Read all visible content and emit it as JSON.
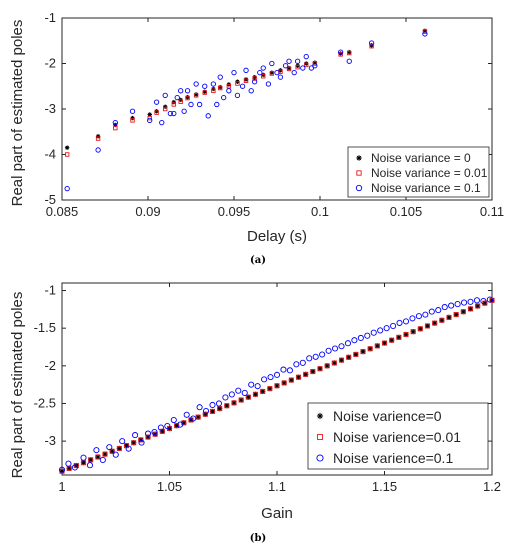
{
  "chart_data": [
    {
      "type": "scatter",
      "caption": "(a)",
      "xlabel": "Delay (s)",
      "ylabel": "Real part of estimated poles",
      "xlim": [
        0.085,
        0.11
      ],
      "ylim": [
        -5,
        -1
      ],
      "x_ticks": [
        "0.085",
        "0.09",
        "0.095",
        "0.1",
        "0.105",
        "0.11"
      ],
      "y_ticks": [
        "-1",
        "-2",
        "-3",
        "-4",
        "-5"
      ],
      "legend_position": "bottom-right",
      "series": [
        {
          "name": "Noise variance = 0",
          "marker": "asterisk",
          "color": "#000000",
          "points": [
            [
              0.0853,
              -3.85
            ],
            [
              0.0871,
              -3.6
            ],
            [
              0.0881,
              -3.35
            ],
            [
              0.0891,
              -3.2
            ],
            [
              0.0901,
              -3.12
            ],
            [
              0.0905,
              -3.05
            ],
            [
              0.091,
              -2.95
            ],
            [
              0.0915,
              -2.85
            ],
            [
              0.0919,
              -2.8
            ],
            [
              0.0923,
              -2.74
            ],
            [
              0.0928,
              -2.68
            ],
            [
              0.0933,
              -2.62
            ],
            [
              0.0938,
              -2.56
            ],
            [
              0.0942,
              -2.52
            ],
            [
              0.0947,
              -2.46
            ],
            [
              0.0952,
              -2.4
            ],
            [
              0.0957,
              -2.35
            ],
            [
              0.0962,
              -2.3
            ],
            [
              0.0967,
              -2.25
            ],
            [
              0.0972,
              -2.2
            ],
            [
              0.0977,
              -2.15
            ],
            [
              0.0982,
              -2.1
            ],
            [
              0.0987,
              -2.05
            ],
            [
              0.0992,
              -2.0
            ],
            [
              0.0997,
              -1.98
            ],
            [
              0.1012,
              -1.78
            ],
            [
              0.1017,
              -1.75
            ],
            [
              0.103,
              -1.6
            ],
            [
              0.1061,
              -1.28
            ]
          ]
        },
        {
          "name": "Noise variance = 0.01",
          "marker": "square",
          "color": "#e41a1c",
          "points": [
            [
              0.0853,
              -4.0
            ],
            [
              0.0871,
              -3.65
            ],
            [
              0.0881,
              -3.42
            ],
            [
              0.0891,
              -3.25
            ],
            [
              0.0901,
              -3.2
            ],
            [
              0.0905,
              -3.08
            ],
            [
              0.091,
              -3.0
            ],
            [
              0.0915,
              -2.9
            ],
            [
              0.0919,
              -2.84
            ],
            [
              0.0923,
              -2.76
            ],
            [
              0.0928,
              -2.7
            ],
            [
              0.0933,
              -2.64
            ],
            [
              0.0938,
              -2.6
            ],
            [
              0.0942,
              -2.54
            ],
            [
              0.0947,
              -2.5
            ],
            [
              0.0952,
              -2.44
            ],
            [
              0.0957,
              -2.38
            ],
            [
              0.0962,
              -2.33
            ],
            [
              0.0967,
              -2.28
            ],
            [
              0.0972,
              -2.22
            ],
            [
              0.0977,
              -2.18
            ],
            [
              0.0982,
              -2.12
            ],
            [
              0.0987,
              -2.08
            ],
            [
              0.0992,
              -2.03
            ],
            [
              0.0997,
              -2.0
            ],
            [
              0.1012,
              -1.8
            ],
            [
              0.1017,
              -1.77
            ],
            [
              0.103,
              -1.62
            ],
            [
              0.1061,
              -1.3
            ]
          ]
        },
        {
          "name": "Noise variance = 0.1",
          "marker": "circle",
          "color": "#0000ff",
          "points": [
            [
              0.0853,
              -4.75
            ],
            [
              0.0871,
              -3.9
            ],
            [
              0.0881,
              -3.3
            ],
            [
              0.0891,
              -3.05
            ],
            [
              0.0901,
              -3.25
            ],
            [
              0.0905,
              -2.85
            ],
            [
              0.0908,
              -3.3
            ],
            [
              0.091,
              -2.7
            ],
            [
              0.0913,
              -3.1
            ],
            [
              0.0915,
              -3.1
            ],
            [
              0.0917,
              -2.75
            ],
            [
              0.0919,
              -2.6
            ],
            [
              0.0921,
              -3.05
            ],
            [
              0.0923,
              -2.6
            ],
            [
              0.0925,
              -2.9
            ],
            [
              0.0928,
              -2.45
            ],
            [
              0.093,
              -2.9
            ],
            [
              0.0933,
              -2.5
            ],
            [
              0.0935,
              -3.15
            ],
            [
              0.0938,
              -2.45
            ],
            [
              0.094,
              -2.9
            ],
            [
              0.0942,
              -2.3
            ],
            [
              0.0944,
              -2.75
            ],
            [
              0.0947,
              -2.6
            ],
            [
              0.095,
              -2.2
            ],
            [
              0.0952,
              -2.7
            ],
            [
              0.0955,
              -2.5
            ],
            [
              0.0957,
              -2.15
            ],
            [
              0.096,
              -2.6
            ],
            [
              0.0962,
              -2.4
            ],
            [
              0.0965,
              -2.2
            ],
            [
              0.0967,
              -2.1
            ],
            [
              0.097,
              -2.45
            ],
            [
              0.0972,
              -2.0
            ],
            [
              0.0975,
              -2.2
            ],
            [
              0.0977,
              -2.3
            ],
            [
              0.098,
              -2.05
            ],
            [
              0.0982,
              -1.95
            ],
            [
              0.0985,
              -2.2
            ],
            [
              0.0987,
              -1.95
            ],
            [
              0.099,
              -2.1
            ],
            [
              0.0992,
              -1.85
            ],
            [
              0.0995,
              -2.1
            ],
            [
              0.0997,
              -2.05
            ],
            [
              0.1012,
              -1.75
            ],
            [
              0.1017,
              -1.95
            ],
            [
              0.103,
              -1.55
            ],
            [
              0.1061,
              -1.35
            ]
          ]
        }
      ]
    },
    {
      "type": "scatter",
      "caption": "(b)",
      "xlabel": "Gain",
      "ylabel": "Real part of estimated poles",
      "xlim": [
        1,
        1.2
      ],
      "ylim": [
        -3.45,
        -0.9
      ],
      "x_ticks": [
        "1",
        "1.05",
        "1.1",
        "1.15",
        "1.2"
      ],
      "y_ticks": [
        "-1",
        "-1.5",
        "-2",
        "-2.5",
        "-3"
      ],
      "legend_position": "bottom-right",
      "series": [
        {
          "name": "Noise varience=0",
          "marker": "asterisk",
          "color": "#000000",
          "line": {
            "x0": 1.0,
            "y0": -3.4,
            "x1": 1.2,
            "y1": -1.13,
            "n": 61
          }
        },
        {
          "name": "Noise varience=0.01",
          "marker": "square",
          "color": "#e41a1c",
          "line": {
            "x0": 1.0,
            "y0": -3.4,
            "x1": 1.2,
            "y1": -1.13,
            "n": 61
          }
        },
        {
          "name": "Noise varience=0.1",
          "marker": "circle",
          "color": "#0000ff",
          "points": [
            [
              1.0,
              -3.38
            ],
            [
              1.003,
              -3.3
            ],
            [
              1.006,
              -3.35
            ],
            [
              1.01,
              -3.22
            ],
            [
              1.013,
              -3.32
            ],
            [
              1.016,
              -3.12
            ],
            [
              1.019,
              -3.25
            ],
            [
              1.022,
              -3.08
            ],
            [
              1.025,
              -3.18
            ],
            [
              1.028,
              -3.0
            ],
            [
              1.031,
              -3.1
            ],
            [
              1.034,
              -2.92
            ],
            [
              1.037,
              -3.02
            ],
            [
              1.04,
              -2.9
            ],
            [
              1.043,
              -2.88
            ],
            [
              1.046,
              -2.82
            ],
            [
              1.049,
              -2.8
            ],
            [
              1.052,
              -2.72
            ],
            [
              1.055,
              -2.78
            ],
            [
              1.058,
              -2.65
            ],
            [
              1.061,
              -2.7
            ],
            [
              1.064,
              -2.55
            ],
            [
              1.067,
              -2.6
            ],
            [
              1.07,
              -2.52
            ],
            [
              1.073,
              -2.5
            ],
            [
              1.076,
              -2.42
            ],
            [
              1.079,
              -2.38
            ],
            [
              1.082,
              -2.33
            ],
            [
              1.085,
              -2.36
            ],
            [
              1.088,
              -2.25
            ],
            [
              1.091,
              -2.27
            ],
            [
              1.094,
              -2.18
            ],
            [
              1.097,
              -2.15
            ],
            [
              1.1,
              -2.12
            ],
            [
              1.103,
              -2.05
            ],
            [
              1.106,
              -2.06
            ],
            [
              1.109,
              -1.98
            ],
            [
              1.112,
              -1.96
            ],
            [
              1.115,
              -1.9
            ],
            [
              1.118,
              -1.88
            ],
            [
              1.121,
              -1.85
            ],
            [
              1.124,
              -1.8
            ],
            [
              1.127,
              -1.77
            ],
            [
              1.13,
              -1.74
            ],
            [
              1.133,
              -1.7
            ],
            [
              1.136,
              -1.66
            ],
            [
              1.139,
              -1.63
            ],
            [
              1.142,
              -1.6
            ],
            [
              1.145,
              -1.56
            ],
            [
              1.148,
              -1.53
            ],
            [
              1.151,
              -1.5
            ],
            [
              1.154,
              -1.47
            ],
            [
              1.157,
              -1.43
            ],
            [
              1.16,
              -1.41
            ],
            [
              1.163,
              -1.37
            ],
            [
              1.166,
              -1.34
            ],
            [
              1.169,
              -1.32
            ],
            [
              1.172,
              -1.28
            ],
            [
              1.175,
              -1.26
            ],
            [
              1.178,
              -1.22
            ],
            [
              1.181,
              -1.2
            ],
            [
              1.184,
              -1.18
            ],
            [
              1.187,
              -1.16
            ],
            [
              1.19,
              -1.15
            ],
            [
              1.193,
              -1.13
            ],
            [
              1.196,
              -1.14
            ],
            [
              1.199,
              -1.12
            ]
          ]
        }
      ]
    }
  ]
}
